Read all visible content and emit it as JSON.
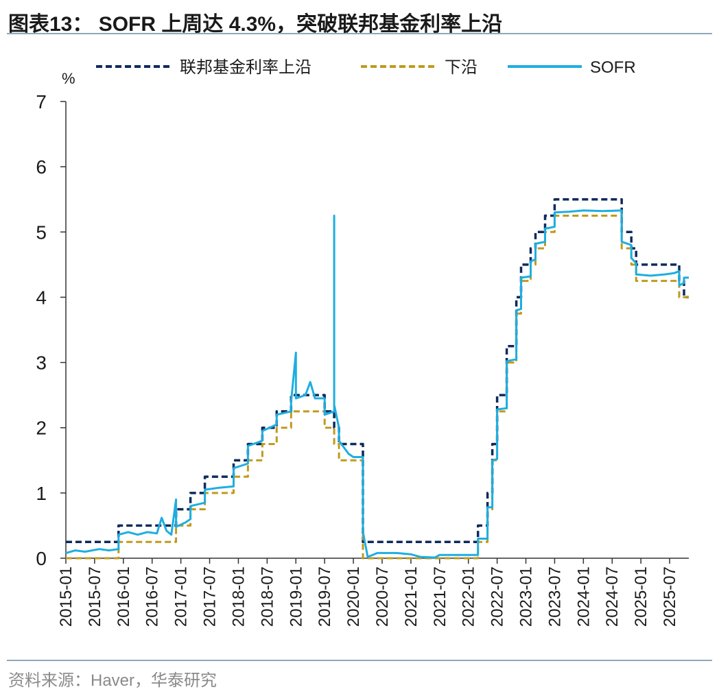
{
  "figure": {
    "title": "图表13： SOFR 上周达 4.3%，突破联邦基金利率上沿",
    "source": "资料来源：Haver，华泰研究"
  },
  "chart_data": {
    "type": "line",
    "ylabel": "%",
    "ylim": [
      0,
      7
    ],
    "yticks": [
      0,
      1,
      2,
      3,
      4,
      5,
      6,
      7
    ],
    "x_range": [
      "2015-01",
      "2025-11"
    ],
    "xticks": [
      "2015-01",
      "2015-07",
      "2016-01",
      "2016-07",
      "2017-01",
      "2017-07",
      "2018-01",
      "2018-07",
      "2019-01",
      "2019-07",
      "2020-01",
      "2020-07",
      "2021-01",
      "2021-07",
      "2022-01",
      "2022-07",
      "2023-01",
      "2023-07",
      "2024-01",
      "2024-07",
      "2025-01",
      "2025-07"
    ],
    "legend": [
      "联邦基金利率上沿",
      "下沿",
      "SOFR"
    ],
    "colors": {
      "upper": "#0e2a5e",
      "lower": "#c09a1c",
      "sofr": "#1eaee0"
    },
    "series": [
      {
        "name": "联邦基金利率上沿",
        "points": [
          [
            "2015-01",
            0.25
          ],
          [
            "2015-12",
            0.25
          ],
          [
            "2015-12",
            0.5
          ],
          [
            "2016-12",
            0.5
          ],
          [
            "2016-12",
            0.75
          ],
          [
            "2017-03",
            0.75
          ],
          [
            "2017-03",
            1.0
          ],
          [
            "2017-06",
            1.0
          ],
          [
            "2017-06",
            1.25
          ],
          [
            "2017-12",
            1.25
          ],
          [
            "2017-12",
            1.5
          ],
          [
            "2018-03",
            1.5
          ],
          [
            "2018-03",
            1.75
          ],
          [
            "2018-06",
            1.75
          ],
          [
            "2018-06",
            2.0
          ],
          [
            "2018-09",
            2.0
          ],
          [
            "2018-09",
            2.25
          ],
          [
            "2018-12",
            2.25
          ],
          [
            "2018-12",
            2.5
          ],
          [
            "2019-07",
            2.5
          ],
          [
            "2019-07",
            2.25
          ],
          [
            "2019-09",
            2.25
          ],
          [
            "2019-09",
            2.0
          ],
          [
            "2019-10",
            2.0
          ],
          [
            "2019-10",
            1.75
          ],
          [
            "2020-03",
            1.75
          ],
          [
            "2020-03",
            1.25
          ],
          [
            "2020-03",
            1.25
          ],
          [
            "2020-03",
            0.25
          ],
          [
            "2022-03",
            0.25
          ],
          [
            "2022-03",
            0.5
          ],
          [
            "2022-05",
            0.5
          ],
          [
            "2022-05",
            1.0
          ],
          [
            "2022-06",
            1.0
          ],
          [
            "2022-06",
            1.75
          ],
          [
            "2022-07",
            1.75
          ],
          [
            "2022-07",
            2.5
          ],
          [
            "2022-09",
            2.5
          ],
          [
            "2022-09",
            3.25
          ],
          [
            "2022-11",
            3.25
          ],
          [
            "2022-11",
            4.0
          ],
          [
            "2022-12",
            4.0
          ],
          [
            "2022-12",
            4.5
          ],
          [
            "2023-02",
            4.5
          ],
          [
            "2023-02",
            4.75
          ],
          [
            "2023-03",
            4.75
          ],
          [
            "2023-03",
            5.0
          ],
          [
            "2023-05",
            5.0
          ],
          [
            "2023-05",
            5.25
          ],
          [
            "2023-07",
            5.25
          ],
          [
            "2023-07",
            5.5
          ],
          [
            "2024-09",
            5.5
          ],
          [
            "2024-09",
            5.0
          ],
          [
            "2024-11",
            5.0
          ],
          [
            "2024-11",
            4.75
          ],
          [
            "2024-12",
            4.75
          ],
          [
            "2024-12",
            4.5
          ],
          [
            "2025-09",
            4.5
          ],
          [
            "2025-09",
            4.25
          ],
          [
            "2025-10",
            4.25
          ],
          [
            "2025-10",
            4.0
          ],
          [
            "2025-11",
            4.0
          ]
        ]
      },
      {
        "name": "下沿",
        "points": [
          [
            "2015-01",
            0.0
          ],
          [
            "2015-12",
            0.0
          ],
          [
            "2015-12",
            0.25
          ],
          [
            "2016-12",
            0.25
          ],
          [
            "2016-12",
            0.5
          ],
          [
            "2017-03",
            0.5
          ],
          [
            "2017-03",
            0.75
          ],
          [
            "2017-06",
            0.75
          ],
          [
            "2017-06",
            1.0
          ],
          [
            "2017-12",
            1.0
          ],
          [
            "2017-12",
            1.25
          ],
          [
            "2018-03",
            1.25
          ],
          [
            "2018-03",
            1.5
          ],
          [
            "2018-06",
            1.5
          ],
          [
            "2018-06",
            1.75
          ],
          [
            "2018-09",
            1.75
          ],
          [
            "2018-09",
            2.0
          ],
          [
            "2018-12",
            2.0
          ],
          [
            "2018-12",
            2.25
          ],
          [
            "2019-07",
            2.25
          ],
          [
            "2019-07",
            2.0
          ],
          [
            "2019-09",
            2.0
          ],
          [
            "2019-09",
            1.75
          ],
          [
            "2019-10",
            1.75
          ],
          [
            "2019-10",
            1.5
          ],
          [
            "2020-03",
            1.5
          ],
          [
            "2020-03",
            1.0
          ],
          [
            "2020-03",
            1.0
          ],
          [
            "2020-03",
            0.0
          ],
          [
            "2022-03",
            0.0
          ],
          [
            "2022-03",
            0.25
          ],
          [
            "2022-05",
            0.25
          ],
          [
            "2022-05",
            0.75
          ],
          [
            "2022-06",
            0.75
          ],
          [
            "2022-06",
            1.5
          ],
          [
            "2022-07",
            1.5
          ],
          [
            "2022-07",
            2.25
          ],
          [
            "2022-09",
            2.25
          ],
          [
            "2022-09",
            3.0
          ],
          [
            "2022-11",
            3.0
          ],
          [
            "2022-11",
            3.75
          ],
          [
            "2022-12",
            3.75
          ],
          [
            "2022-12",
            4.25
          ],
          [
            "2023-02",
            4.25
          ],
          [
            "2023-02",
            4.5
          ],
          [
            "2023-03",
            4.5
          ],
          [
            "2023-03",
            4.75
          ],
          [
            "2023-05",
            4.75
          ],
          [
            "2023-05",
            5.0
          ],
          [
            "2023-07",
            5.0
          ],
          [
            "2023-07",
            5.25
          ],
          [
            "2024-09",
            5.25
          ],
          [
            "2024-09",
            4.75
          ],
          [
            "2024-11",
            4.75
          ],
          [
            "2024-11",
            4.5
          ],
          [
            "2024-12",
            4.5
          ],
          [
            "2024-12",
            4.25
          ],
          [
            "2025-09",
            4.25
          ],
          [
            "2025-09",
            4.0
          ],
          [
            "2025-10",
            4.0
          ],
          [
            "2025-11",
            4.0
          ]
        ]
      },
      {
        "name": "SOFR",
        "points": [
          [
            "2015-01",
            0.08
          ],
          [
            "2015-03",
            0.12
          ],
          [
            "2015-05",
            0.1
          ],
          [
            "2015-08",
            0.14
          ],
          [
            "2015-10",
            0.12
          ],
          [
            "2015-12",
            0.14
          ],
          [
            "2015-12",
            0.36
          ],
          [
            "2016-02",
            0.4
          ],
          [
            "2016-04",
            0.36
          ],
          [
            "2016-06",
            0.4
          ],
          [
            "2016-08",
            0.38
          ],
          [
            "2016-09",
            0.62
          ],
          [
            "2016-10",
            0.42
          ],
          [
            "2016-11",
            0.36
          ],
          [
            "2016-12",
            0.9
          ],
          [
            "2016-12",
            0.48
          ],
          [
            "2017-02",
            0.55
          ],
          [
            "2017-03",
            0.6
          ],
          [
            "2017-03",
            0.8
          ],
          [
            "2017-06",
            0.85
          ],
          [
            "2017-06",
            1.05
          ],
          [
            "2017-09",
            1.08
          ],
          [
            "2017-12",
            1.1
          ],
          [
            "2017-12",
            1.38
          ],
          [
            "2018-03",
            1.45
          ],
          [
            "2018-03",
            1.72
          ],
          [
            "2018-06",
            1.8
          ],
          [
            "2018-06",
            1.95
          ],
          [
            "2018-09",
            2.05
          ],
          [
            "2018-09",
            2.2
          ],
          [
            "2018-12",
            2.25
          ],
          [
            "2018-12",
            2.4
          ],
          [
            "2019-01",
            3.15
          ],
          [
            "2019-01",
            2.45
          ],
          [
            "2019-03",
            2.5
          ],
          [
            "2019-04",
            2.7
          ],
          [
            "2019-05",
            2.45
          ],
          [
            "2019-07",
            2.45
          ],
          [
            "2019-07",
            2.2
          ],
          [
            "2019-09",
            2.25
          ],
          [
            "2019-09",
            5.25
          ],
          [
            "2019-09",
            2.35
          ],
          [
            "2019-10",
            2.0
          ],
          [
            "2019-10",
            1.8
          ],
          [
            "2019-12",
            1.6
          ],
          [
            "2020-01",
            1.55
          ],
          [
            "2020-03",
            1.55
          ],
          [
            "2020-03",
            1.1
          ],
          [
            "2020-03",
            0.4
          ],
          [
            "2020-04",
            0.02
          ],
          [
            "2020-06",
            0.08
          ],
          [
            "2020-10",
            0.08
          ],
          [
            "2021-01",
            0.06
          ],
          [
            "2021-03",
            0.02
          ],
          [
            "2021-06",
            0.01
          ],
          [
            "2021-07",
            0.05
          ],
          [
            "2021-12",
            0.05
          ],
          [
            "2022-03",
            0.05
          ],
          [
            "2022-03",
            0.3
          ],
          [
            "2022-05",
            0.3
          ],
          [
            "2022-05",
            0.78
          ],
          [
            "2022-06",
            0.78
          ],
          [
            "2022-06",
            1.5
          ],
          [
            "2022-07",
            1.52
          ],
          [
            "2022-07",
            2.28
          ],
          [
            "2022-09",
            2.3
          ],
          [
            "2022-09",
            3.02
          ],
          [
            "2022-11",
            3.05
          ],
          [
            "2022-11",
            3.8
          ],
          [
            "2022-12",
            3.82
          ],
          [
            "2022-12",
            4.3
          ],
          [
            "2023-02",
            4.32
          ],
          [
            "2023-02",
            4.55
          ],
          [
            "2023-03",
            4.58
          ],
          [
            "2023-03",
            4.82
          ],
          [
            "2023-05",
            4.85
          ],
          [
            "2023-05",
            5.05
          ],
          [
            "2023-07",
            5.08
          ],
          [
            "2023-07",
            5.3
          ],
          [
            "2023-10",
            5.31
          ],
          [
            "2024-01",
            5.33
          ],
          [
            "2024-05",
            5.32
          ],
          [
            "2024-09",
            5.33
          ],
          [
            "2024-09",
            4.85
          ],
          [
            "2024-11",
            4.8
          ],
          [
            "2024-11",
            4.6
          ],
          [
            "2024-12",
            4.52
          ],
          [
            "2024-12",
            4.35
          ],
          [
            "2025-03",
            4.33
          ],
          [
            "2025-06",
            4.35
          ],
          [
            "2025-08",
            4.37
          ],
          [
            "2025-09",
            4.4
          ],
          [
            "2025-09",
            4.18
          ],
          [
            "2025-10",
            4.22
          ],
          [
            "2025-10",
            4.3
          ],
          [
            "2025-11",
            4.3
          ]
        ]
      }
    ]
  }
}
